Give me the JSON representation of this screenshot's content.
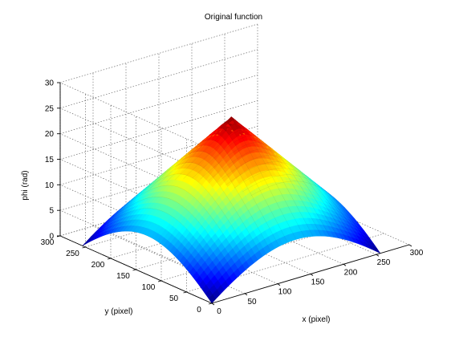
{
  "chart_data": {
    "type": "surface",
    "title": "Original function",
    "xlabel": "x (pixel)",
    "ylabel": "y (pixel)",
    "zlabel": "phi (rad)",
    "xlim": [
      0,
      300
    ],
    "ylim": [
      0,
      300
    ],
    "zlim": [
      0,
      30
    ],
    "xticks": [
      0,
      50,
      100,
      150,
      200,
      250,
      300
    ],
    "yticks": [
      0,
      50,
      100,
      150,
      200,
      250,
      300
    ],
    "zticks": [
      0,
      5,
      10,
      15,
      20,
      25,
      30
    ],
    "grid": true,
    "colormap": "jet",
    "surface_extent": {
      "x": [
        0,
        256
      ],
      "y": [
        0,
        256
      ]
    },
    "surface_function": "phi = 26 * (1 - sqrt((x-128)^2 + (y-128)^2) / 181)",
    "sample_points": [
      {
        "x": 0,
        "y": 0,
        "z": 0
      },
      {
        "x": 256,
        "y": 0,
        "z": 0
      },
      {
        "x": 0,
        "y": 256,
        "z": 0
      },
      {
        "x": 256,
        "y": 256,
        "z": 0
      },
      {
        "x": 128,
        "y": 0,
        "z": 7.6
      },
      {
        "x": 0,
        "y": 128,
        "z": 7.6
      },
      {
        "x": 128,
        "y": 256,
        "z": 7.6
      },
      {
        "x": 256,
        "y": 128,
        "z": 7.6
      },
      {
        "x": 128,
        "y": 128,
        "z": 26
      }
    ]
  }
}
